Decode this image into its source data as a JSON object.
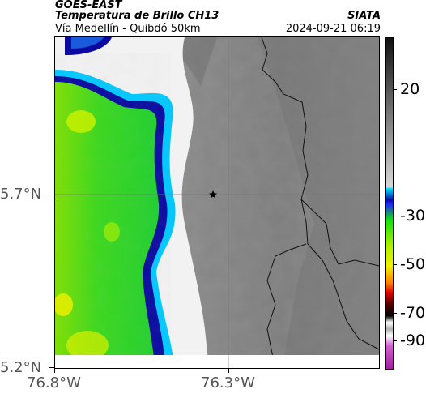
{
  "header": {
    "satellite": "GOES-EAST",
    "product": "Temperatura de Brillo CH13",
    "region": "Vía Medellín - Quibdó 50km",
    "source": "SIATA",
    "datetime": "2024-09-21 06:19"
  },
  "map": {
    "y_ticks": [
      "5.7°N",
      "5.2°N"
    ],
    "x_ticks": [
      "76.8°W",
      "76.3°W"
    ],
    "marker_icon": "star-icon"
  },
  "colorbar": {
    "labels": [
      "20",
      "-30",
      "-50",
      "-70",
      "-90"
    ],
    "colors": {
      "warm_gray_dark": "#222222",
      "warm_gray_light": "#d8d8d8",
      "cyan": "#00c8ff",
      "blue": "#0a0aa0",
      "green": "#10e010",
      "yellow": "#f0f000",
      "orange": "#ff8000",
      "red": "#e00000",
      "black": "#000000",
      "magenta": "#c040c0"
    }
  }
}
